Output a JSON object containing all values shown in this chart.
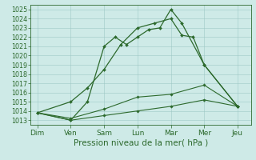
{
  "x_labels": [
    "Dim",
    "Ven",
    "Sam",
    "Lun",
    "Mar",
    "Mer",
    "Jeu"
  ],
  "x_positions": [
    0,
    1,
    2,
    3,
    4,
    5,
    6
  ],
  "series": [
    {
      "name": "line_high_jagged",
      "x": [
        0,
        1,
        1.5,
        2,
        2.33,
        2.67,
        3,
        3.33,
        3.67,
        4,
        4.33,
        5,
        6
      ],
      "y": [
        1013.8,
        1013.0,
        1015.0,
        1021.0,
        1022.0,
        1021.2,
        1022.0,
        1022.8,
        1023.0,
        1025.0,
        1023.5,
        1019.0,
        1014.5
      ],
      "color": "#2d6a2d",
      "linewidth": 0.9,
      "marker": "D",
      "markersize": 2.0
    },
    {
      "name": "line_high_smooth",
      "x": [
        0,
        1,
        1.5,
        2,
        2.5,
        3,
        3.5,
        4,
        4.33,
        4.67,
        5,
        6
      ],
      "y": [
        1013.8,
        1015.0,
        1016.5,
        1018.5,
        1021.2,
        1023.0,
        1023.5,
        1024.0,
        1022.2,
        1022.0,
        1019.0,
        1014.5
      ],
      "color": "#2d6a2d",
      "linewidth": 0.9,
      "marker": "D",
      "markersize": 2.0
    },
    {
      "name": "line_mid",
      "x": [
        0,
        1,
        2,
        3,
        4,
        5,
        6
      ],
      "y": [
        1013.8,
        1013.2,
        1014.2,
        1015.5,
        1015.8,
        1016.8,
        1014.5
      ],
      "color": "#2d6a2d",
      "linewidth": 0.8,
      "marker": "D",
      "markersize": 1.8
    },
    {
      "name": "line_low",
      "x": [
        0,
        1,
        2,
        3,
        4,
        5,
        6
      ],
      "y": [
        1013.8,
        1013.0,
        1013.5,
        1014.0,
        1014.5,
        1015.2,
        1014.5
      ],
      "color": "#2d6a2d",
      "linewidth": 0.8,
      "marker": "D",
      "markersize": 1.8
    }
  ],
  "ylim": [
    1012.5,
    1025.5
  ],
  "yticks": [
    1013,
    1014,
    1015,
    1016,
    1017,
    1018,
    1019,
    1020,
    1021,
    1022,
    1023,
    1024,
    1025
  ],
  "xlim": [
    -0.2,
    6.4
  ],
  "xlabel": "Pression niveau de la mer( hPa )",
  "background_color": "#ceeae7",
  "grid_color": "#9fc8c5",
  "text_color": "#2d6a2d",
  "axis_color": "#2d6a2d",
  "xlabel_fontsize": 7.5,
  "xtick_fontsize": 6.5,
  "ytick_fontsize": 5.8
}
